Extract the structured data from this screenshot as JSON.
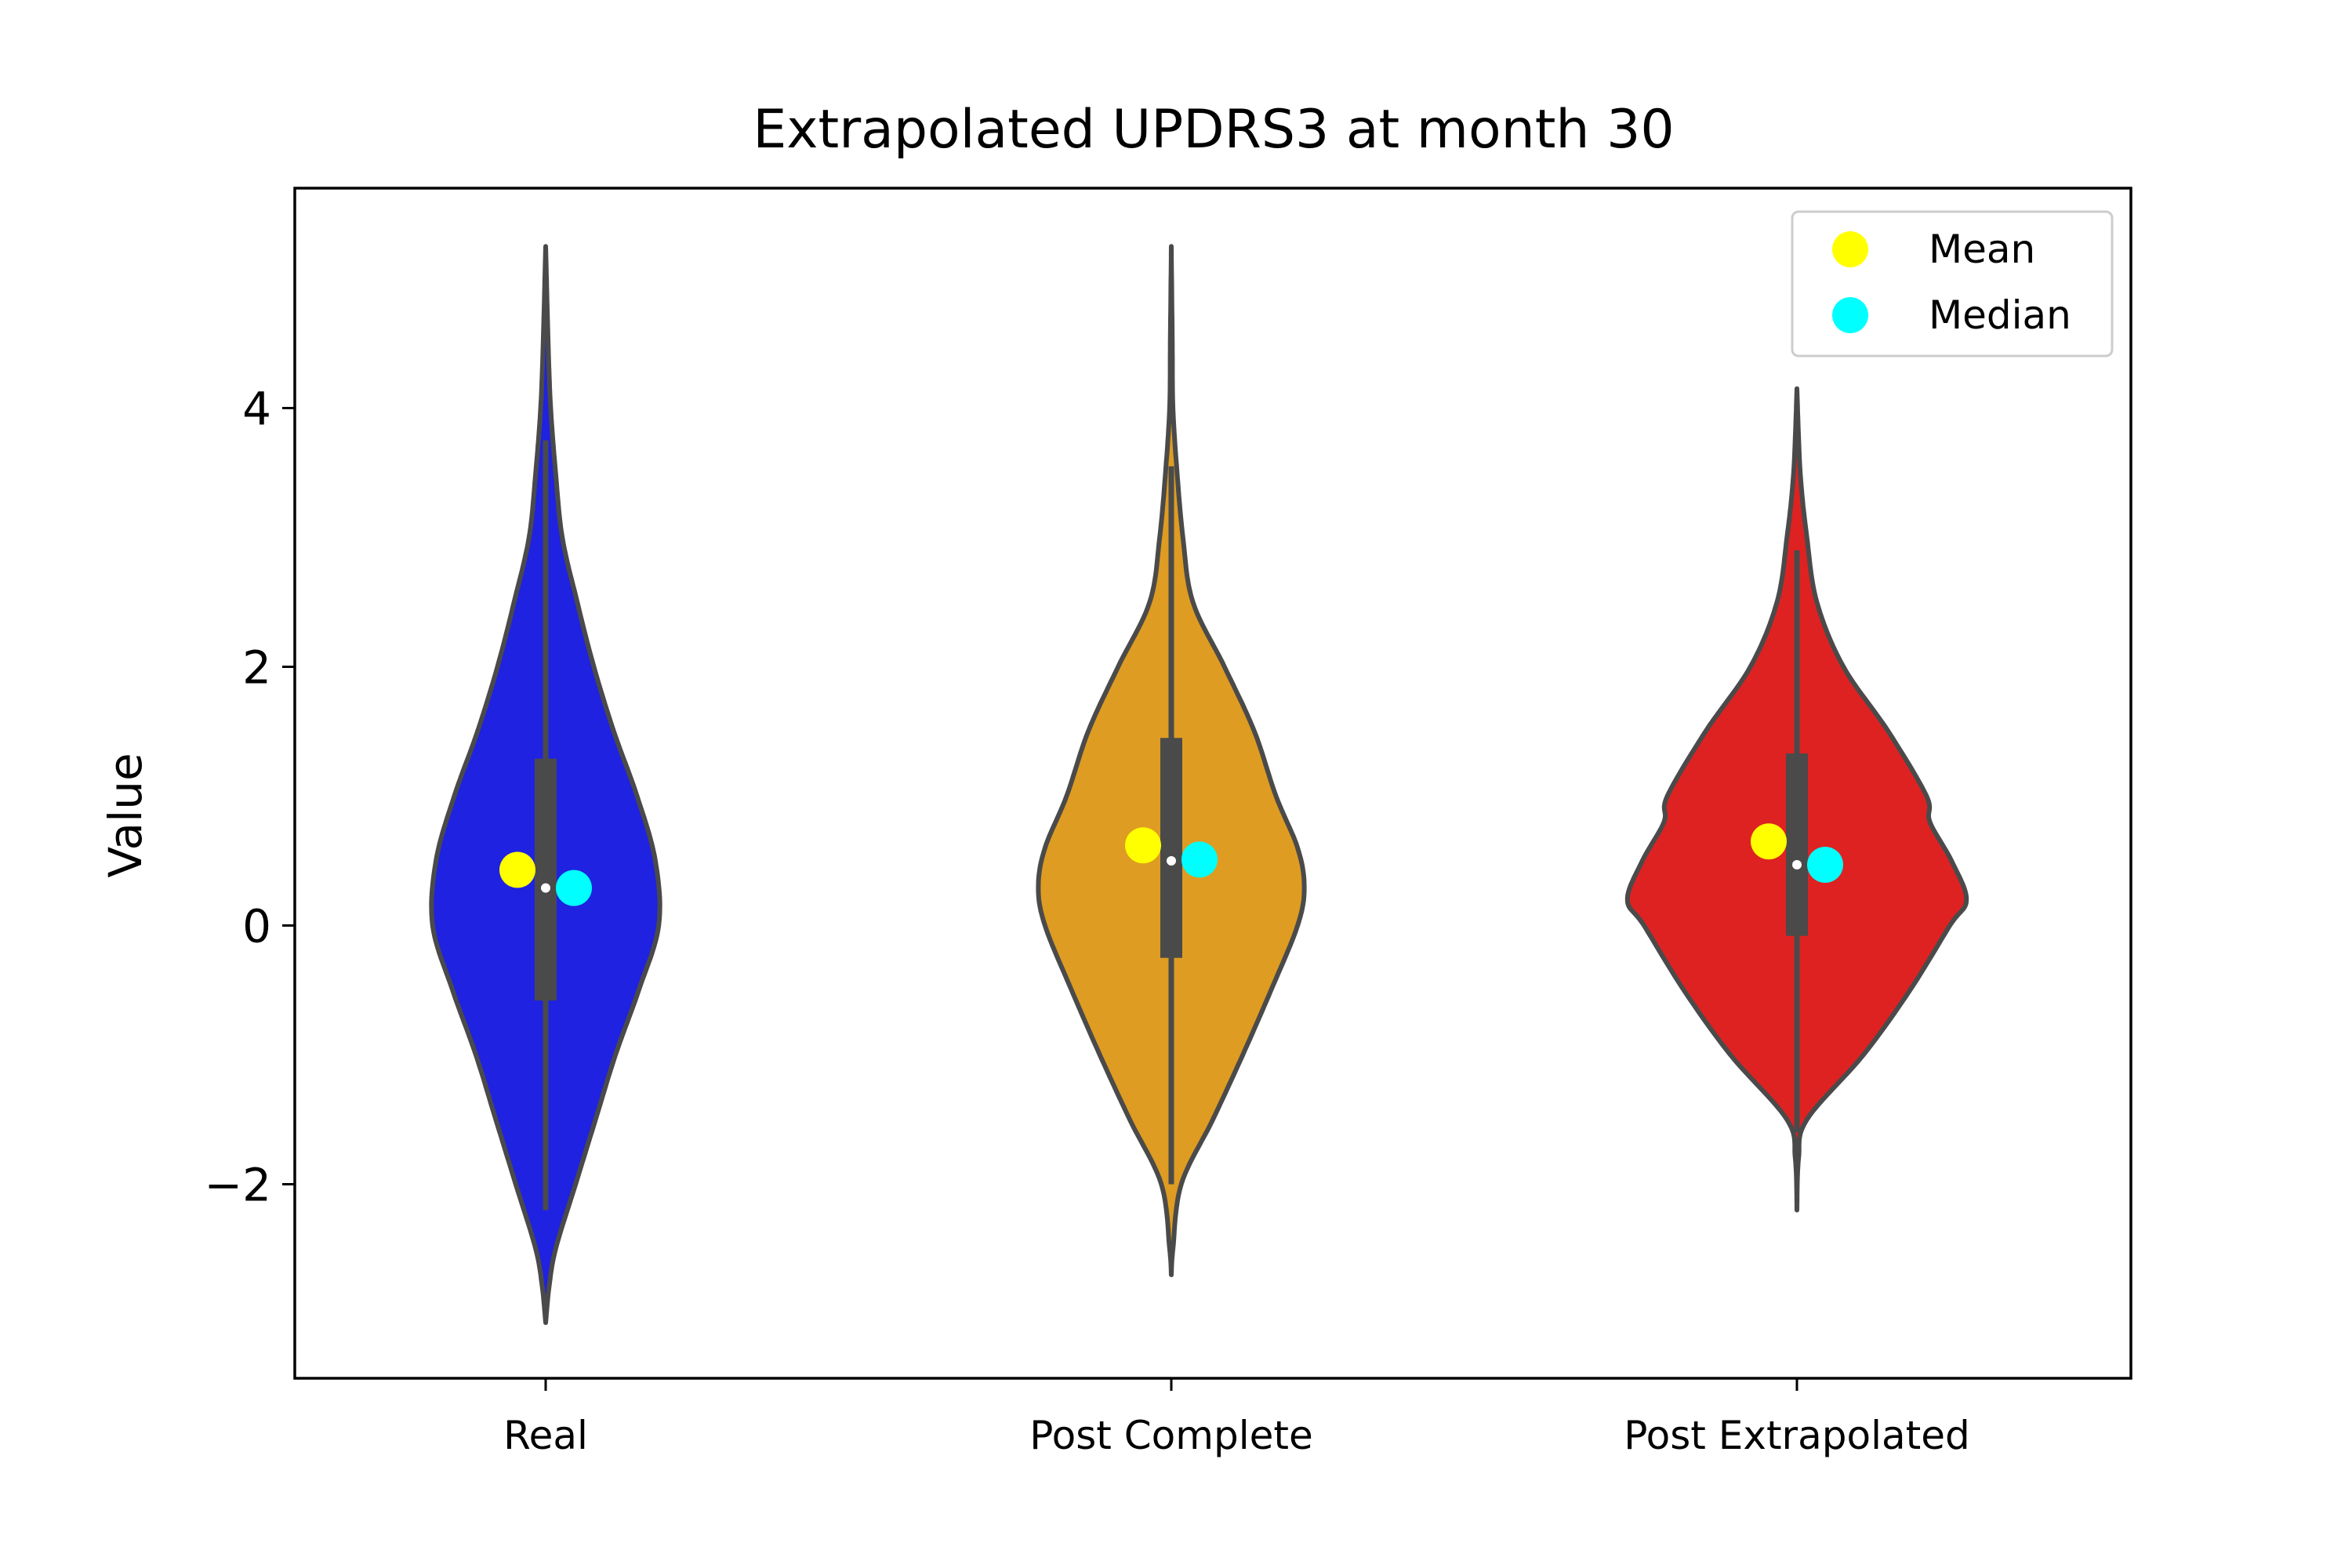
{
  "chart_data": {
    "type": "violin",
    "title": "Extrapolated UPDRS3 at month 30",
    "xlabel": "",
    "ylabel": "Value",
    "ylim": [
      -3.5,
      5.7
    ],
    "yticks": [
      -2,
      0,
      2,
      4
    ],
    "ytick_labels": [
      "−2",
      "0",
      "2",
      "4"
    ],
    "categories": [
      "Real",
      "Post Complete",
      "Post Extrapolated"
    ],
    "colors": [
      "#1f22e0",
      "#de9c22",
      "#de2222"
    ],
    "outline_color": "#4a4a4a",
    "grid": false,
    "legend": {
      "placement": "top-right",
      "entries": [
        {
          "label": "Mean",
          "color": "#ffff00"
        },
        {
          "label": "Median",
          "color": "#00ffff"
        }
      ]
    },
    "violins": [
      {
        "name": "Real",
        "range": [
          -3.07,
          5.25
        ],
        "quartiles": [
          -0.58,
          0.29,
          1.29
        ],
        "whiskers": [
          -2.2,
          3.75
        ],
        "mean": 0.43,
        "median": 0.29,
        "profile": [
          [
            -3.07,
            0.0
          ],
          [
            -2.8,
            0.02
          ],
          [
            -2.5,
            0.06
          ],
          [
            -2.0,
            0.18
          ],
          [
            -1.5,
            0.3
          ],
          [
            -1.0,
            0.42
          ],
          [
            -0.5,
            0.56
          ],
          [
            0.0,
            0.68
          ],
          [
            0.5,
            0.66
          ],
          [
            1.0,
            0.55
          ],
          [
            1.5,
            0.41
          ],
          [
            2.0,
            0.29
          ],
          [
            2.5,
            0.19
          ],
          [
            3.0,
            0.1
          ],
          [
            3.5,
            0.06
          ],
          [
            4.0,
            0.03
          ],
          [
            4.5,
            0.015
          ],
          [
            5.0,
            0.005
          ],
          [
            5.25,
            0.0
          ]
        ]
      },
      {
        "name": "Post Complete",
        "range": [
          -2.7,
          5.25
        ],
        "quartiles": [
          -0.25,
          0.5,
          1.45
        ],
        "whiskers": [
          -2.0,
          3.55
        ],
        "mean": 0.62,
        "median": 0.51,
        "profile": [
          [
            -2.7,
            0.0
          ],
          [
            -2.5,
            0.01
          ],
          [
            -2.0,
            0.06
          ],
          [
            -1.5,
            0.25
          ],
          [
            -1.0,
            0.43
          ],
          [
            -0.5,
            0.6
          ],
          [
            0.0,
            0.76
          ],
          [
            0.3,
            0.8
          ],
          [
            0.6,
            0.76
          ],
          [
            1.0,
            0.63
          ],
          [
            1.5,
            0.5
          ],
          [
            2.0,
            0.32
          ],
          [
            2.5,
            0.13
          ],
          [
            3.0,
            0.07
          ],
          [
            3.5,
            0.035
          ],
          [
            4.0,
            0.01
          ],
          [
            4.5,
            0.006
          ],
          [
            5.25,
            0.0
          ]
        ]
      },
      {
        "name": "Post Extrapolated",
        "range": [
          -2.2,
          4.15
        ],
        "quartiles": [
          -0.08,
          0.47,
          1.33
        ],
        "whiskers": [
          -1.6,
          2.9
        ],
        "mean": 0.65,
        "median": 0.47,
        "profile": [
          [
            -2.2,
            0.0
          ],
          [
            -1.8,
            0.01
          ],
          [
            -1.5,
            0.06
          ],
          [
            -1.0,
            0.4
          ],
          [
            -0.5,
            0.68
          ],
          [
            0.0,
            0.92
          ],
          [
            0.2,
            1.02
          ],
          [
            0.5,
            0.93
          ],
          [
            0.8,
            0.8
          ],
          [
            1.0,
            0.78
          ],
          [
            1.5,
            0.55
          ],
          [
            2.0,
            0.28
          ],
          [
            2.5,
            0.12
          ],
          [
            3.0,
            0.06
          ],
          [
            3.5,
            0.02
          ],
          [
            4.15,
            0.0
          ]
        ]
      }
    ]
  }
}
